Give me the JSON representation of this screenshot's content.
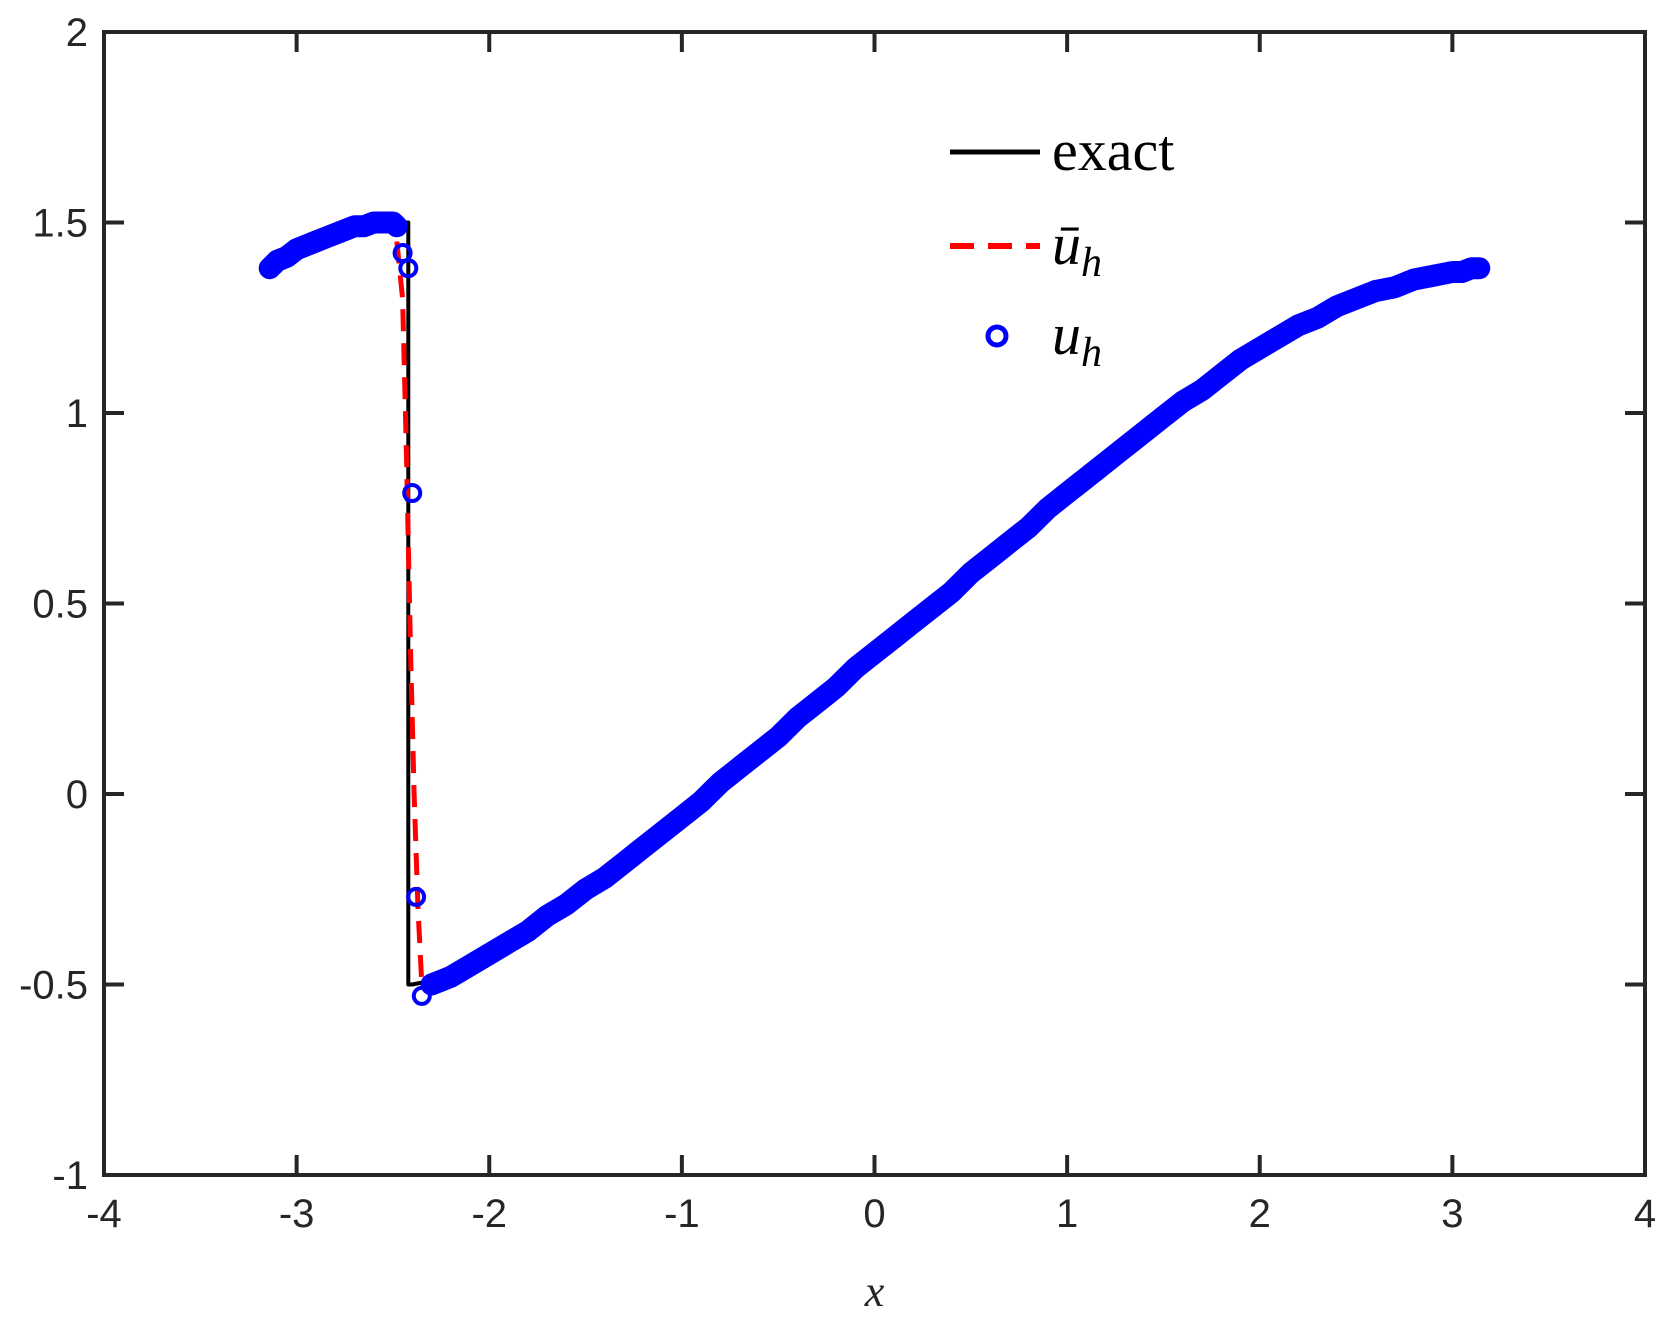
{
  "chart_data": {
    "type": "line",
    "xlabel": "x",
    "ylabel": "",
    "xlim": [
      -4,
      4
    ],
    "ylim": [
      -1,
      2
    ],
    "xticks": [
      "-4",
      "-3",
      "-2",
      "-1",
      "0",
      "1",
      "2",
      "3",
      "4"
    ],
    "yticks": [
      "-1",
      "-0.5",
      "0",
      "0.5",
      "1",
      "1.5",
      "2"
    ],
    "grid": false,
    "legend_position": "top-right",
    "legend": [
      {
        "label": "exact",
        "style": "solid",
        "color": "#000000"
      },
      {
        "label": "ū",
        "subscript": "h",
        "style": "dashed",
        "color": "#ff0000"
      },
      {
        "label": "u",
        "subscript": "h",
        "style": "circle",
        "color": "#0000ff"
      }
    ],
    "series": [
      {
        "style": "solid",
        "color": "#000000",
        "x": [
          -3.14,
          -3.0,
          -2.9,
          -2.8,
          -2.7,
          -2.6,
          -2.5,
          -2.42,
          -2.42,
          -2.4,
          -2.3,
          -2.2,
          -2.0,
          -1.8,
          -1.6,
          -1.4,
          -1.2,
          -1.0,
          -0.8,
          -0.6,
          -0.4,
          -0.2,
          0.0,
          0.2,
          0.4,
          0.6,
          0.8,
          1.0,
          1.2,
          1.4,
          1.6,
          1.8,
          2.0,
          2.2,
          2.4,
          2.6,
          2.8,
          3.0,
          3.14
        ],
        "y": [
          1.38,
          1.42,
          1.45,
          1.47,
          1.49,
          1.5,
          1.5,
          1.5,
          -0.5,
          -0.5,
          -0.49,
          -0.47,
          -0.42,
          -0.36,
          -0.29,
          -0.22,
          -0.14,
          -0.06,
          0.03,
          0.11,
          0.2,
          0.28,
          0.37,
          0.45,
          0.53,
          0.62,
          0.7,
          0.79,
          0.87,
          0.95,
          1.03,
          1.1,
          1.17,
          1.23,
          1.28,
          1.32,
          1.35,
          1.37,
          1.38
        ]
      },
      {
        "style": "dashed",
        "color": "#ff0000",
        "x": [
          -2.48,
          -2.45,
          -2.43,
          -2.41,
          -2.39,
          -2.37,
          -2.35
        ],
        "y": [
          1.45,
          1.3,
          0.9,
          0.4,
          0.0,
          -0.3,
          -0.5
        ]
      },
      {
        "style": "circle",
        "color": "#0000ff",
        "x": [
          -3.14,
          -3.1,
          -3.05,
          -3.0,
          -2.95,
          -2.9,
          -2.85,
          -2.8,
          -2.75,
          -2.7,
          -2.65,
          -2.6,
          -2.55,
          -2.5,
          -2.48,
          -2.45,
          -2.42,
          -2.4,
          -2.38,
          -2.35,
          -2.3,
          -2.2,
          -2.1,
          -2.0,
          -1.9,
          -1.8,
          -1.7,
          -1.6,
          -1.5,
          -1.4,
          -1.3,
          -1.2,
          -1.1,
          -1.0,
          -0.9,
          -0.8,
          -0.7,
          -0.6,
          -0.5,
          -0.4,
          -0.3,
          -0.2,
          -0.1,
          0.0,
          0.1,
          0.2,
          0.3,
          0.4,
          0.5,
          0.6,
          0.7,
          0.8,
          0.9,
          1.0,
          1.1,
          1.2,
          1.3,
          1.4,
          1.5,
          1.6,
          1.7,
          1.8,
          1.9,
          2.0,
          2.1,
          2.2,
          2.3,
          2.4,
          2.5,
          2.6,
          2.7,
          2.8,
          2.9,
          3.0,
          3.05,
          3.1,
          3.14
        ],
        "y": [
          1.38,
          1.4,
          1.41,
          1.43,
          1.44,
          1.45,
          1.46,
          1.47,
          1.48,
          1.49,
          1.49,
          1.5,
          1.5,
          1.5,
          1.49,
          1.42,
          1.38,
          0.79,
          -0.27,
          -0.53,
          -0.5,
          -0.48,
          -0.45,
          -0.42,
          -0.39,
          -0.36,
          -0.32,
          -0.29,
          -0.25,
          -0.22,
          -0.18,
          -0.14,
          -0.1,
          -0.06,
          -0.02,
          0.03,
          0.07,
          0.11,
          0.15,
          0.2,
          0.24,
          0.28,
          0.33,
          0.37,
          0.41,
          0.45,
          0.49,
          0.53,
          0.58,
          0.62,
          0.66,
          0.7,
          0.75,
          0.79,
          0.83,
          0.87,
          0.91,
          0.95,
          0.99,
          1.03,
          1.06,
          1.1,
          1.14,
          1.17,
          1.2,
          1.23,
          1.25,
          1.28,
          1.3,
          1.32,
          1.33,
          1.35,
          1.36,
          1.37,
          1.37,
          1.38,
          1.38
        ]
      }
    ]
  }
}
